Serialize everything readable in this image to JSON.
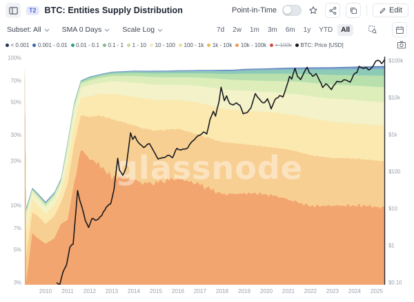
{
  "header": {
    "badge": "T2",
    "title": "BTC: Entities Supply Distribution",
    "point_in_time_label": "Point-in-Time",
    "edit_label": "Edit"
  },
  "controls": {
    "subset_label": "Subset: All",
    "sma_label": "SMA 0 Days",
    "scale_label": "Scale Log",
    "ranges": [
      "7d",
      "2w",
      "1m",
      "3m",
      "6m",
      "1y",
      "YTD",
      "All"
    ],
    "active_range": "All"
  },
  "legend": [
    {
      "label": "< 0.001",
      "color": "#26324e",
      "disabled": false
    },
    {
      "label": "0.001 - 0.01",
      "color": "#3d66b0",
      "disabled": false
    },
    {
      "label": "0.01 - 0.1",
      "color": "#2f9c84",
      "disabled": false
    },
    {
      "label": "0.1 - 1",
      "color": "#88b789",
      "disabled": false
    },
    {
      "label": "1 - 10",
      "color": "#c6d89b",
      "disabled": false
    },
    {
      "label": "10 - 100",
      "color": "#eeeec6",
      "disabled": false
    },
    {
      "label": "100 - 1k",
      "color": "#f0dd95",
      "disabled": false
    },
    {
      "label": "1k - 10k",
      "color": "#e7bd55",
      "disabled": false
    },
    {
      "label": "10k - 100k",
      "color": "#ec9a4e",
      "disabled": false
    },
    {
      "label": "> 100k",
      "color": "#cc4b3d",
      "disabled": true
    },
    {
      "label": "BTC: Price [USD]",
      "color": "#161616",
      "disabled": false
    }
  ],
  "watermark": "glassnode",
  "chart_data": {
    "type": "area",
    "stacked": true,
    "title": "BTC: Entities Supply Distribution",
    "x_range": [
      2009.06,
      2025.38
    ],
    "x_ticks": [
      {
        "label": "2010",
        "year": 2010
      },
      {
        "label": "2011",
        "year": 2011
      },
      {
        "label": "2012",
        "year": 2012
      },
      {
        "label": "2013",
        "year": 2013
      },
      {
        "label": "2014",
        "year": 2014
      },
      {
        "label": "2015",
        "year": 2015
      },
      {
        "label": "2016",
        "year": 2016
      },
      {
        "label": "2017",
        "year": 2017
      },
      {
        "label": "2018",
        "year": 2018
      },
      {
        "label": "2019",
        "year": 2019
      },
      {
        "label": "2020",
        "year": 2020
      },
      {
        "label": "2021",
        "year": 2021
      },
      {
        "label": "2022",
        "year": 2022
      },
      {
        "label": "2023",
        "year": 2023
      },
      {
        "label": "2024",
        "year": 2024
      },
      {
        "label": "2025",
        "year": 2025
      }
    ],
    "y_left": {
      "scale": "log",
      "unit": "% of supply",
      "ticks": [
        {
          "label": "100%",
          "value": 100
        },
        {
          "label": "70%",
          "value": 70
        },
        {
          "label": "50%",
          "value": 50
        },
        {
          "label": "30%",
          "value": 30
        },
        {
          "label": "20%",
          "value": 20
        },
        {
          "label": "10%",
          "value": 10
        },
        {
          "label": "7%",
          "value": 7
        },
        {
          "label": "5%",
          "value": 5
        },
        {
          "label": "3%",
          "value": 3
        }
      ]
    },
    "y_right": {
      "scale": "log",
      "unit": "USD",
      "ticks": [
        {
          "label": "$100k",
          "value": 100000
        },
        {
          "label": "$10k",
          "value": 10000
        },
        {
          "label": "$1k",
          "value": 1000
        },
        {
          "label": "$100",
          "value": 100
        },
        {
          "label": "$10",
          "value": 10
        },
        {
          "label": "$1",
          "value": 1
        },
        {
          "label": "$0.10",
          "value": 0.1
        }
      ]
    },
    "bands_bottom_to_top": [
      {
        "name": "10k - 100k",
        "fill": "#f2a56e"
      },
      {
        "name": "1k - 10k",
        "fill": "#f8cf92"
      },
      {
        "name": "100 - 1k",
        "fill": "#fbe9b0"
      },
      {
        "name": "10 - 100",
        "fill": "#f3f2c9"
      },
      {
        "name": "1 - 10",
        "fill": "#ddeebb"
      },
      {
        "name": "0.1 - 1",
        "fill": "#b8e0ad"
      },
      {
        "name": "0.01 - 0.1",
        "fill": "#8ecbb6"
      },
      {
        "name": "0.001 - 0.01",
        "fill": "#7fa8d4"
      },
      {
        "name": "< 0.001",
        "fill": "#5577ad"
      }
    ],
    "samples": {
      "years": [
        2009.06,
        2009.12,
        2009.4,
        2009.65,
        2010.0,
        2010.4,
        2010.7,
        2011.0,
        2011.3,
        2011.6,
        2012.0,
        2012.5,
        2013.0,
        2013.5,
        2014.0,
        2014.5,
        2015.0,
        2015.5,
        2016.0,
        2016.5,
        2017.0,
        2017.5,
        2018.0,
        2018.5,
        2019.0,
        2019.5,
        2020.0,
        2020.5,
        2021.0,
        2021.5,
        2022.0,
        2022.5,
        2023.0,
        2023.5,
        2024.0,
        2024.5,
        2025.0,
        2025.38
      ],
      "cumulative_pct": [
        [
          84,
          84.3,
          84.6,
          84.9,
          85.1,
          85.2,
          85.3,
          85.4,
          85.5
        ],
        [
          3,
          4.5,
          6.5,
          8.5,
          9,
          9.2,
          9.4,
          9.5,
          9.6
        ],
        [
          6.5,
          9,
          11,
          12.3,
          12.7,
          12.9,
          13,
          13.1,
          13.2
        ],
        [
          6,
          8.5,
          10,
          11.2,
          11.6,
          11.8,
          11.9,
          12,
          12.1
        ],
        [
          5.5,
          7.5,
          8.8,
          9.7,
          10.1,
          10.3,
          10.4,
          10.5,
          10.6
        ],
        [
          6,
          8.5,
          10,
          11.3,
          11.8,
          12,
          12.1,
          12.2,
          12.3
        ],
        [
          7.5,
          10.5,
          12.5,
          14,
          14.6,
          14.9,
          15.1,
          15.2,
          15.3
        ],
        [
          8,
          14,
          19,
          23.5,
          25.5,
          26.3,
          26.7,
          26.9,
          27
        ],
        [
          14,
          26,
          36,
          44,
          47.5,
          49,
          49.8,
          50.1,
          50.3
        ],
        [
          24,
          41,
          54,
          63,
          67,
          68.8,
          69.8,
          70.2,
          70.5
        ],
        [
          21,
          40,
          55,
          65.5,
          70.5,
          72.8,
          74,
          74.5,
          74.8
        ],
        [
          19,
          41,
          57.5,
          68,
          73.5,
          76,
          77.2,
          77.7,
          78
        ],
        [
          16,
          39,
          57,
          69.5,
          75.5,
          78.3,
          79.8,
          80.4,
          80.7
        ],
        [
          16,
          37,
          56,
          69,
          75.5,
          78.8,
          80.4,
          81,
          81.4
        ],
        [
          15,
          35,
          54.5,
          68,
          75.5,
          79.2,
          81,
          81.7,
          82.1
        ],
        [
          14,
          33,
          53,
          67,
          74.8,
          78.8,
          80.8,
          81.6,
          82
        ],
        [
          14,
          32,
          52,
          66,
          74.2,
          78.5,
          80.7,
          81.5,
          82
        ],
        [
          14.5,
          32.5,
          52,
          66,
          74.2,
          78.6,
          80.9,
          81.7,
          82.2
        ],
        [
          15,
          33,
          52,
          66,
          74.2,
          78.8,
          81.2,
          82,
          82.5
        ],
        [
          14.5,
          31.5,
          51,
          65.5,
          74,
          78.8,
          81.3,
          82.2,
          82.7
        ],
        [
          14,
          30,
          49.5,
          64.5,
          73.8,
          78.8,
          81.5,
          82.5,
          83
        ],
        [
          13,
          28.5,
          47.5,
          63,
          73,
          78.5,
          81.5,
          82.5,
          83.1
        ],
        [
          12,
          27,
          45.5,
          61.5,
          72,
          78,
          81.4,
          82.6,
          83.2
        ],
        [
          12,
          26.5,
          44.5,
          60.5,
          71.2,
          77.8,
          81.5,
          82.7,
          83.3
        ],
        [
          12,
          26,
          44,
          60,
          70.8,
          78.3,
          82.2,
          83.6,
          84.3
        ],
        [
          12,
          25.5,
          43.5,
          59.5,
          70.3,
          78.2,
          82.5,
          84,
          84.7
        ],
        [
          11.8,
          25,
          43,
          59,
          70,
          78.2,
          82.8,
          84.4,
          85.1
        ],
        [
          11.5,
          24.5,
          42.5,
          58.5,
          69.8,
          78.2,
          83.2,
          84.9,
          85.6
        ],
        [
          11,
          24,
          41.5,
          57.5,
          69.5,
          78.4,
          83.6,
          85.3,
          86.1
        ],
        [
          10.5,
          23,
          40.5,
          56.5,
          69,
          78.2,
          83.6,
          85.4,
          86.2
        ],
        [
          10,
          22,
          39,
          55,
          68,
          77.8,
          83.6,
          85.5,
          86.4
        ],
        [
          10,
          21.5,
          38,
          54,
          67,
          77.3,
          83.6,
          85.6,
          86.5
        ],
        [
          10,
          21,
          37,
          53,
          66,
          76.8,
          83.6,
          85.7,
          86.7
        ],
        [
          10,
          21,
          36.5,
          52.5,
          65.5,
          76.6,
          83.8,
          86,
          87
        ],
        [
          10,
          20.8,
          36,
          52,
          65,
          76.4,
          84,
          86.3,
          87.4
        ],
        [
          10,
          20.5,
          35.5,
          51,
          64.3,
          76.1,
          84.1,
          86.5,
          87.7
        ],
        [
          9.8,
          20.2,
          35,
          50.5,
          63.8,
          76,
          84.2,
          86.7,
          88
        ],
        [
          9.8,
          20,
          34.8,
          50,
          63.5,
          76,
          84.3,
          86.8,
          88.2
        ]
      ]
    },
    "price_usd": [
      [
        2010.5,
        0.1
      ],
      [
        2010.65,
        0.09
      ],
      [
        2010.8,
        0.2
      ],
      [
        2010.95,
        0.3
      ],
      [
        2011.1,
        0.9
      ],
      [
        2011.25,
        1.1
      ],
      [
        2011.45,
        31
      ],
      [
        2011.55,
        17
      ],
      [
        2011.65,
        11
      ],
      [
        2011.8,
        4.8
      ],
      [
        2011.95,
        3.1
      ],
      [
        2012.1,
        5.4
      ],
      [
        2012.3,
        4.9
      ],
      [
        2012.55,
        6.6
      ],
      [
        2012.75,
        11
      ],
      [
        2012.95,
        13.5
      ],
      [
        2013.1,
        33
      ],
      [
        2013.27,
        230
      ],
      [
        2013.35,
        110
      ],
      [
        2013.5,
        80
      ],
      [
        2013.65,
        130
      ],
      [
        2013.85,
        1130
      ],
      [
        2013.95,
        750
      ],
      [
        2014.05,
        920
      ],
      [
        2014.2,
        620
      ],
      [
        2014.45,
        450
      ],
      [
        2014.7,
        580
      ],
      [
        2014.95,
        320
      ],
      [
        2015.1,
        220
      ],
      [
        2015.3,
        240
      ],
      [
        2015.55,
        280
      ],
      [
        2015.75,
        240
      ],
      [
        2015.95,
        430
      ],
      [
        2016.15,
        390
      ],
      [
        2016.45,
        450
      ],
      [
        2016.65,
        670
      ],
      [
        2016.95,
        960
      ],
      [
        2017.15,
        1190
      ],
      [
        2017.3,
        1050
      ],
      [
        2017.45,
        2600
      ],
      [
        2017.6,
        4300
      ],
      [
        2017.7,
        3200
      ],
      [
        2017.85,
        7500
      ],
      [
        2017.95,
        19300
      ],
      [
        2018.1,
        8300
      ],
      [
        2018.2,
        11300
      ],
      [
        2018.35,
        6900
      ],
      [
        2018.5,
        6400
      ],
      [
        2018.65,
        7300
      ],
      [
        2018.8,
        6300
      ],
      [
        2018.95,
        3700
      ],
      [
        2019.1,
        3900
      ],
      [
        2019.3,
        5300
      ],
      [
        2019.5,
        13000
      ],
      [
        2019.6,
        10500
      ],
      [
        2019.75,
        8200
      ],
      [
        2019.9,
        7300
      ],
      [
        2020.05,
        9400
      ],
      [
        2020.22,
        5000
      ],
      [
        2020.4,
        9100
      ],
      [
        2020.6,
        11500
      ],
      [
        2020.75,
        10500
      ],
      [
        2020.9,
        19000
      ],
      [
        2021.05,
        38000
      ],
      [
        2021.15,
        32000
      ],
      [
        2021.3,
        63000
      ],
      [
        2021.42,
        37000
      ],
      [
        2021.55,
        31000
      ],
      [
        2021.7,
        47000
      ],
      [
        2021.85,
        67000
      ],
      [
        2021.95,
        47000
      ],
      [
        2022.1,
        38000
      ],
      [
        2022.25,
        45000
      ],
      [
        2022.4,
        30000
      ],
      [
        2022.55,
        19000
      ],
      [
        2022.7,
        24000
      ],
      [
        2022.85,
        19500
      ],
      [
        2022.95,
        16600
      ],
      [
        2023.1,
        23000
      ],
      [
        2023.2,
        28000
      ],
      [
        2023.35,
        27000
      ],
      [
        2023.5,
        30500
      ],
      [
        2023.65,
        29500
      ],
      [
        2023.8,
        26500
      ],
      [
        2023.95,
        42000
      ],
      [
        2024.1,
        48000
      ],
      [
        2024.2,
        71000
      ],
      [
        2024.35,
        64000
      ],
      [
        2024.5,
        67000
      ],
      [
        2024.62,
        57000
      ],
      [
        2024.75,
        63000
      ],
      [
        2024.85,
        75000
      ],
      [
        2024.95,
        97000
      ],
      [
        2025.05,
        104000
      ],
      [
        2025.15,
        97000
      ],
      [
        2025.22,
        84000
      ],
      [
        2025.3,
        95000
      ],
      [
        2025.38,
        107000
      ]
    ]
  }
}
